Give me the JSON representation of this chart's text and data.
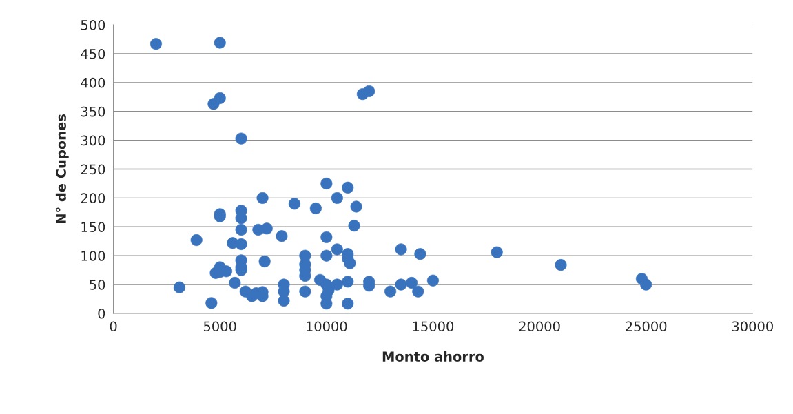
{
  "chart_data": {
    "type": "scatter",
    "xlabel": "Monto ahorro",
    "ylabel": "N° de Cupones",
    "xlim": [
      0,
      30000
    ],
    "xticks": [
      0,
      5000,
      10000,
      15000,
      20000,
      25000,
      30000
    ],
    "ylim": [
      0,
      500
    ],
    "yticks": [
      0,
      50,
      100,
      150,
      200,
      250,
      300,
      350,
      400,
      450,
      500
    ],
    "grid": "y",
    "marker": "circle",
    "series": [
      {
        "color": "#3a73bd",
        "x": [
          2000,
          5000,
          4700,
          5000,
          6000,
          11700,
          12000,
          3100,
          3900,
          4600,
          4800,
          5000,
          5000,
          5300,
          5000,
          5000,
          5600,
          5700,
          6000,
          6000,
          6000,
          6000,
          6000,
          6000,
          6000,
          6200,
          6500,
          6700,
          6800,
          7000,
          7000,
          7000,
          7100,
          7200,
          7900,
          8000,
          8000,
          8000,
          8500,
          9000,
          9000,
          9000,
          9000,
          9000,
          9500,
          9700,
          10000,
          10000,
          10000,
          10000,
          10000,
          10000,
          10100,
          10500,
          10500,
          10500,
          11000,
          11000,
          11000,
          11000,
          11000,
          11100,
          11300,
          11400,
          12000,
          12000,
          13000,
          13500,
          13500,
          14000,
          14300,
          14400,
          15000,
          18000,
          21000,
          24800,
          25000
        ],
        "values": [
          467,
          469,
          363,
          373,
          303,
          380,
          385,
          45,
          127,
          18,
          70,
          72,
          80,
          73,
          168,
          172,
          122,
          53,
          178,
          165,
          145,
          120,
          92,
          80,
          75,
          38,
          30,
          35,
          145,
          200,
          37,
          30,
          90,
          147,
          134,
          50,
          38,
          22,
          190,
          100,
          85,
          75,
          65,
          38,
          182,
          58,
          225,
          132,
          100,
          50,
          30,
          17,
          40,
          200,
          111,
          50,
          218,
          103,
          95,
          55,
          17,
          87,
          152,
          185,
          55,
          48,
          38,
          111,
          50,
          53,
          38,
          103,
          57,
          106,
          84,
          60,
          50
        ]
      }
    ]
  }
}
